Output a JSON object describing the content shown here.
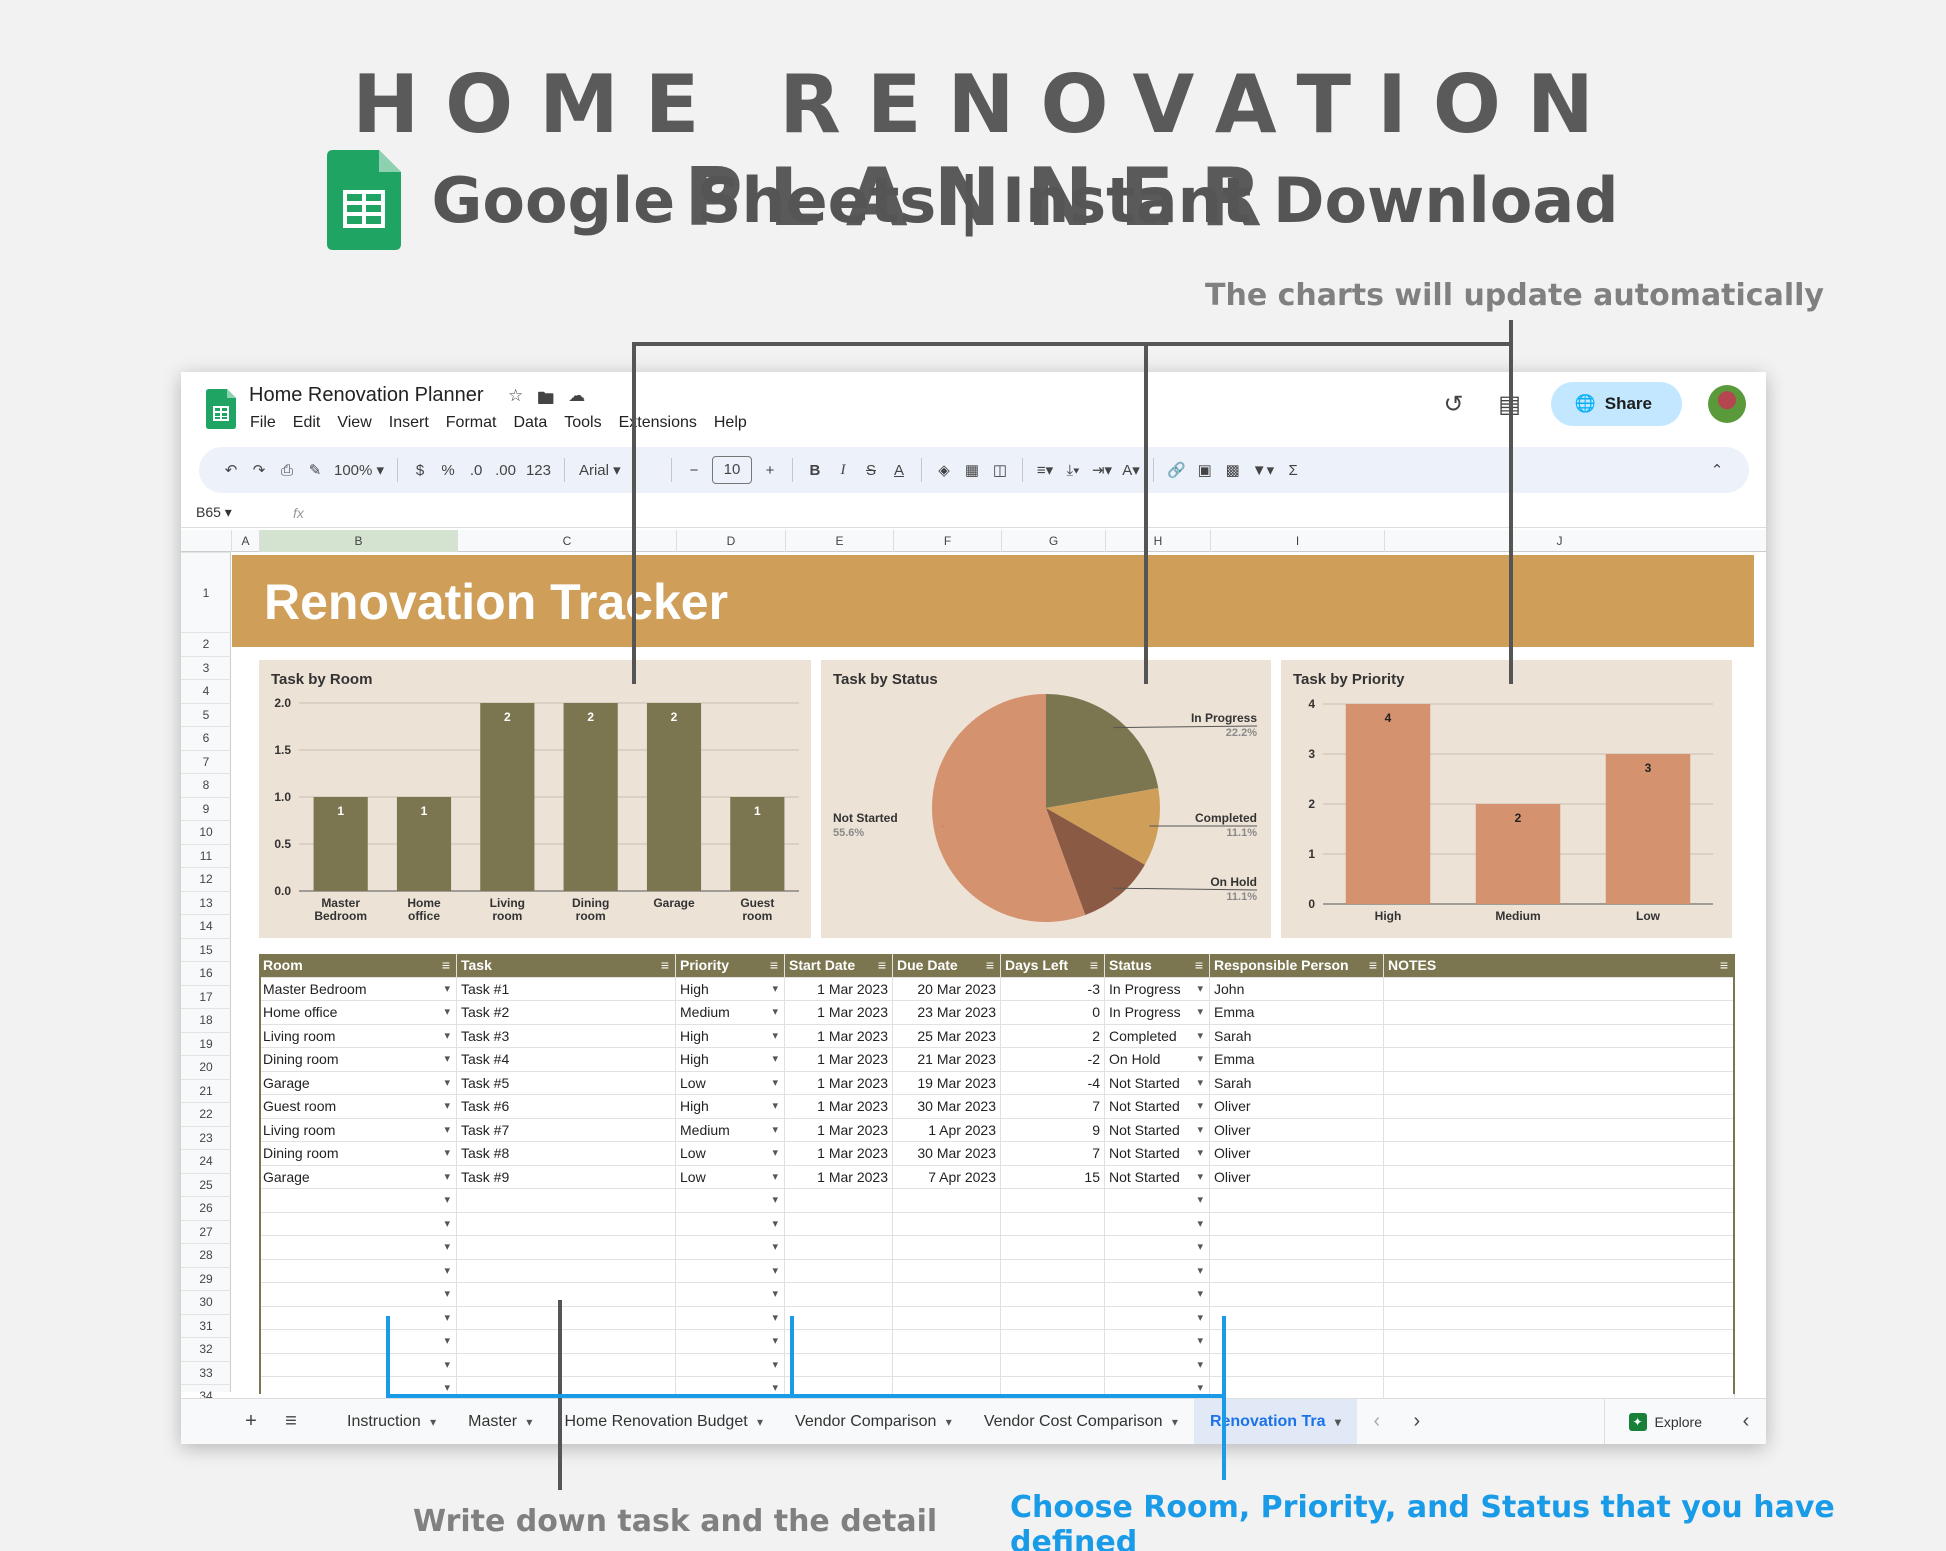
{
  "hero": {
    "headline": "HOME RENOVATION PLANNER",
    "subline": "Google Sheets | Instant Download"
  },
  "annotations": {
    "charts": "The charts will update automatically",
    "task": "Write down task and the detail",
    "choose": "Choose Room, Priority, and Status that you have defined"
  },
  "app": {
    "title": "Home Renovation Planner",
    "menu": [
      "File",
      "Edit",
      "View",
      "Insert",
      "Format",
      "Data",
      "Tools",
      "Extensions",
      "Help"
    ],
    "share": "Share",
    "zoom": "100%",
    "font": "Arial",
    "font_size": "10",
    "name_box": "B65",
    "fx": "fx"
  },
  "toolbar": {
    "currency": "$",
    "percent": "%",
    "dec_less": ".0",
    "dec_more": ".00",
    "number_format": "123"
  },
  "columns": [
    "A",
    "B",
    "C",
    "D",
    "E",
    "F",
    "G",
    "H",
    "I",
    "J"
  ],
  "rows": [
    "1",
    "2",
    "3",
    "4",
    "5",
    "6",
    "7",
    "8",
    "9",
    "10",
    "11",
    "12",
    "13",
    "14",
    "15",
    "16",
    "17",
    "18",
    "19",
    "20",
    "21",
    "22",
    "23",
    "24",
    "25",
    "26",
    "27",
    "28",
    "29",
    "30",
    "31",
    "32",
    "33",
    "34"
  ],
  "sheet": {
    "banner": "Renovation Tracker"
  },
  "chart_data": [
    {
      "type": "bar",
      "title": "Task by Room",
      "categories": [
        "Master Bedroom",
        "Home office",
        "Living room",
        "Dining room",
        "Garage",
        "Guest room"
      ],
      "values": [
        1,
        1,
        2,
        2,
        2,
        1
      ],
      "y_ticks": [
        "0.0",
        "0.5",
        "1.0",
        "1.5",
        "2.0"
      ],
      "ylim": [
        0,
        2
      ],
      "color": "#7b7650",
      "grid": true
    },
    {
      "type": "pie",
      "title": "Task by Status",
      "slices": [
        {
          "name": "In Progress",
          "value": 22.2,
          "label": "22.2%",
          "color": "#7b7650"
        },
        {
          "name": "Completed",
          "value": 11.1,
          "label": "11.1%",
          "color": "#cf9f59"
        },
        {
          "name": "On Hold",
          "value": 11.1,
          "label": "11.1%",
          "color": "#8a5a44"
        },
        {
          "name": "Not Started",
          "value": 55.6,
          "label": "55.6%",
          "color": "#d4926f"
        }
      ]
    },
    {
      "type": "bar",
      "title": "Task by Priority",
      "categories": [
        "High",
        "Medium",
        "Low"
      ],
      "values": [
        4,
        2,
        3
      ],
      "y_ticks": [
        "0",
        "1",
        "2",
        "3",
        "4"
      ],
      "ylim": [
        0,
        4
      ],
      "color": "#d4926f",
      "grid": true
    }
  ],
  "table": {
    "headers": [
      "Room",
      "Task",
      "Priority",
      "Start Date",
      "Due Date",
      "Days Left",
      "Status",
      "Responsible Person",
      "NOTES"
    ],
    "rows": [
      [
        "Master Bedroom",
        "Task #1",
        "High",
        "1 Mar 2023",
        "20 Mar 2023",
        "-3",
        "In Progress",
        "John",
        ""
      ],
      [
        "Home office",
        "Task #2",
        "Medium",
        "1 Mar 2023",
        "23 Mar 2023",
        "0",
        "In Progress",
        "Emma",
        ""
      ],
      [
        "Living room",
        "Task #3",
        "High",
        "1 Mar 2023",
        "25 Mar 2023",
        "2",
        "Completed",
        "Sarah",
        ""
      ],
      [
        "Dining room",
        "Task #4",
        "High",
        "1 Mar 2023",
        "21 Mar 2023",
        "-2",
        "On Hold",
        "Emma",
        ""
      ],
      [
        "Garage",
        "Task #5",
        "Low",
        "1 Mar 2023",
        "19 Mar 2023",
        "-4",
        "Not Started",
        "Sarah",
        ""
      ],
      [
        "Guest room",
        "Task #6",
        "High",
        "1 Mar 2023",
        "30 Mar 2023",
        "7",
        "Not Started",
        "Oliver",
        ""
      ],
      [
        "Living room",
        "Task #7",
        "Medium",
        "1 Mar 2023",
        "1 Apr 2023",
        "9",
        "Not Started",
        "Oliver",
        ""
      ],
      [
        "Dining room",
        "Task #8",
        "Low",
        "1 Mar 2023",
        "30 Mar 2023",
        "7",
        "Not Started",
        "Oliver",
        ""
      ],
      [
        "Garage",
        "Task #9",
        "Low",
        "1 Mar 2023",
        "7 Apr 2023",
        "15",
        "Not Started",
        "Oliver",
        ""
      ]
    ],
    "empty_rows": 9
  },
  "tabs": [
    {
      "label": "Instruction",
      "active": false
    },
    {
      "label": "Master",
      "active": false
    },
    {
      "label": "Home Renovation Budget",
      "active": false
    },
    {
      "label": "Vendor Comparison",
      "active": false
    },
    {
      "label": "Vendor Cost Comparison",
      "active": false
    },
    {
      "label": "Renovation Tra",
      "active": true
    }
  ],
  "explore": "Explore",
  "colors": {
    "banner": "#cf9f59",
    "olive": "#7b7650",
    "salmon": "#d4926f",
    "card": "#ece2d6",
    "accent_blue": "#1a9be8",
    "annot_gray": "#5a5a5a"
  }
}
